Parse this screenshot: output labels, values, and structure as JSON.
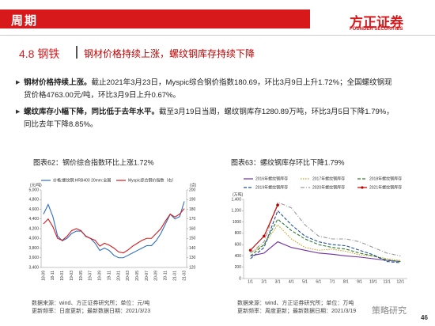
{
  "header": {
    "section": "周期",
    "logo_cn": "方正证券",
    "logo_en": "FOUNDER SECURITIES"
  },
  "heading": {
    "number": "4.8 钢铁",
    "text": "钢材价格持续上涨，螺纹钢库存持续下降"
  },
  "bullets": [
    {
      "bold": "钢材价格持续上涨。",
      "text": "截止2021年3月23日，Myspic综合钢价指数180.69，环比3月9日上升1.72%；全国螺纹钢现货价格4763.00元/吨，环比3月9日上升0.67%。"
    },
    {
      "bold": "螺纹库存小幅下降，同比低于去年水平。",
      "text": "截至3月19日当周，螺纹钢库存1280.89万吨，环比3月5日下降1.79%，同比去年下降8.85%。"
    }
  ],
  "chart_data": [
    {
      "type": "line",
      "title": "图表62：钢价综合指数环比上涨1.72%",
      "ylabel": "(元/吨)",
      "y2label": "(点)",
      "categories": [
        "18-09",
        null,
        "18-11",
        null,
        "19-01",
        null,
        "19-03",
        null,
        "19-05",
        null,
        "19-07",
        null,
        "19-09",
        null,
        "19-11",
        null,
        "20-01",
        null,
        "20-03",
        null,
        "20-05",
        null,
        "20-07",
        null,
        "20-09",
        null,
        "20-11",
        null,
        "21-01",
        null,
        "21-03"
      ],
      "series": [
        {
          "name": "价格:螺纹钢:HRB400 20mm:全国",
          "color": "#2f6fc4",
          "style": "solid",
          "values": [
            4500,
            4700,
            4450,
            4050,
            3950,
            4000,
            4100,
            4150,
            4150,
            4050,
            4000,
            3900,
            3750,
            3800,
            3750,
            3650,
            3600,
            3600,
            3650,
            3700,
            3750,
            3800,
            3850,
            3850,
            3950,
            4100,
            4300,
            4500,
            4400,
            4450,
            4763
          ]
        },
        {
          "name": "Myspic综合钢价指数（右）",
          "color": "#d7191c",
          "style": "solid",
          "axis": "y2",
          "values": [
            165,
            170,
            162,
            150,
            148,
            152,
            158,
            160,
            158,
            152,
            150,
            148,
            142,
            145,
            143,
            140,
            136,
            135,
            138,
            142,
            145,
            148,
            150,
            150,
            155,
            160,
            168,
            175,
            172,
            175,
            180.69
          ]
        }
      ],
      "ylim": [
        3400,
        5000
      ],
      "yticks": [
        {
          "value": 3400,
          "label": "3,400"
        },
        {
          "value": 3600,
          "label": "3,600"
        },
        {
          "value": 3800,
          "label": "3,800"
        },
        {
          "value": 4000,
          "label": "4,000"
        },
        {
          "value": 4200,
          "label": "4,200"
        },
        {
          "value": 4400,
          "label": "4,400"
        },
        {
          "value": 4600,
          "label": "4,600"
        },
        {
          "value": 4800,
          "label": "4,800"
        },
        {
          "value": 5000,
          "label": "5,000"
        }
      ],
      "y2lim": [
        120,
        200
      ],
      "y2ticks": [
        120,
        130,
        140,
        150,
        160,
        170,
        180,
        190,
        200
      ],
      "grid": false
    },
    {
      "type": "line",
      "title": "图表63：螺纹钢库存环比下降1.79%",
      "ylabel": "(万吨)",
      "categories": [
        "1/1",
        "2/1",
        "3/1",
        "4/1",
        "5/1",
        "6/1",
        "7/1",
        "8/1",
        "9/1",
        "10/1",
        "11/1",
        "12/1"
      ],
      "series": [
        {
          "name": "2016年螺纹钢库存",
          "color": "#7030a0",
          "style": "solid",
          "values": [
            400,
            450,
            650,
            550,
            500,
            450,
            430,
            400,
            380,
            350,
            320,
            300
          ]
        },
        {
          "name": "2017年螺纹钢库存",
          "color": "#c9a227",
          "style": "dotted",
          "values": [
            450,
            600,
            950,
            700,
            550,
            500,
            520,
            480,
            420,
            400,
            350,
            320
          ]
        },
        {
          "name": "2018年螺纹钢库存",
          "color": "#2e7d32",
          "style": "dashed",
          "values": [
            400,
            600,
            1050,
            850,
            700,
            600,
            550,
            520,
            450,
            400,
            330,
            300
          ]
        },
        {
          "name": "2019年螺纹钢库存",
          "color": "#1f4e9c",
          "style": "dashed",
          "values": [
            350,
            550,
            1200,
            950,
            750,
            650,
            600,
            580,
            500,
            420,
            300,
            280
          ]
        },
        {
          "name": "2020年螺纹钢库存",
          "color": "#9a9a9a",
          "style": "dashdot",
          "values": [
            450,
            650,
            1350,
            1250,
            950,
            750,
            700,
            700,
            650,
            550,
            450,
            400
          ]
        },
        {
          "name": "2021年螺纹钢库存",
          "color": "#c00000",
          "style": "solid",
          "marker": true,
          "values": [
            500,
            750,
            1300,
            null,
            null,
            null,
            null,
            null,
            null,
            null,
            null,
            null
          ]
        }
      ],
      "ylim": [
        0,
        1400
      ],
      "yticks": [
        0,
        200,
        400,
        600,
        800,
        1000,
        {
          "value": 1200,
          "label": "1,200"
        },
        {
          "value": 1400,
          "label": "1,400"
        }
      ],
      "grid": false
    }
  ],
  "sources": [
    {
      "source": "数据来源：wind、方正证券研究所；单位：元/吨",
      "update": "更新频率：日度更新；最新数据日期：2021/3/23"
    },
    {
      "source": "数据来源：wind、方正证券研究所；单位：万吨",
      "update": "更新频率：周度更新；最新数据日期：2021/3/19"
    }
  ],
  "watermark": "策略研究",
  "page_number": 46
}
